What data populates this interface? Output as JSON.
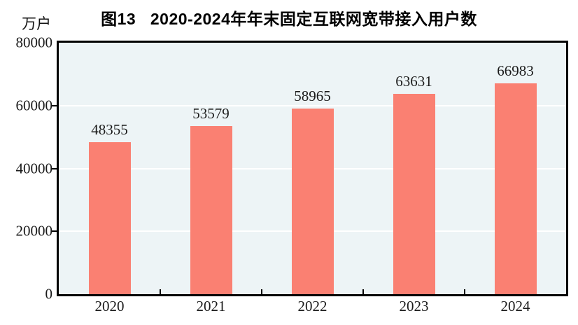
{
  "title": "图13   2020-2024年年末固定互联网宽带接入用户数",
  "unit_label": "万户",
  "chart_data": {
    "type": "bar",
    "title": "图13   2020-2024年年末固定互联网宽带接入用户数",
    "categories": [
      "2020",
      "2021",
      "2022",
      "2023",
      "2024"
    ],
    "values": [
      48355,
      53579,
      58965,
      63631,
      66983
    ],
    "xlabel": "",
    "ylabel": "万户",
    "ylim": [
      0,
      80000
    ],
    "yticks": [
      0,
      20000,
      40000,
      60000,
      80000
    ],
    "grid": true,
    "legend_position": "none",
    "colors": {
      "bar_fill": "#FA8072",
      "plot_background": "#EDF4F6",
      "gridline": "#FFFFFF",
      "axis": "#000000",
      "text": "#1b1b1b"
    }
  }
}
